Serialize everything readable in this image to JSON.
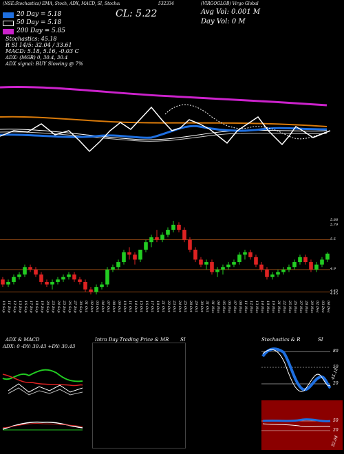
{
  "header": {
    "title_line": "(NSE:Stochastics) EMA, Stoch, ADX, MACD, SI, Stochastics MR",
    "stock_no": "532334",
    "close": "CL: 5.22",
    "avg_vol": "Avg Vol: 0.001 M",
    "day_vol": "Day Vol: 0   M",
    "company": "(VIRGOGLOB) Virgo Global"
  },
  "legend": [
    {
      "label": "20  Day = 5.18",
      "color": "#1e6fe0"
    },
    {
      "label": "50  Day = 5.18",
      "color": "#ffffff"
    },
    {
      "label": "200  Day = 5.85",
      "color": "#cc22cc"
    }
  ],
  "info_lines": {
    "stoch": "Stochastics: 45.18",
    "si": "R            SI 14/5: 32.04  /  33.61",
    "macd": "MACD: 5.18, 5.16, -0.03 C",
    "adx": "ADX:                         (MGR) 0, 30.4, 30.4",
    "adx_signal": "ADX  signal:                        BUY Slowing @ 7%"
  },
  "price_scale": [
    "5.88",
    "5.79",
    "5.5",
    "4.9",
    "4.45",
    "4.45"
  ],
  "colors": {
    "up": "#22cc22",
    "down": "#dd2222",
    "ema20": "#1e6fe0",
    "ema200": "#cc22cc",
    "orange": "#d97a0a",
    "grid": "#8b4513",
    "panel_bg_red": "#8b0000"
  },
  "chart_data": [
    {
      "type": "candlestick",
      "dates": [
        "10 Sep",
        "11 Sep",
        "12 Sep",
        "13 Sep",
        "16 Sep",
        "17 Sep",
        "18 Sep",
        "19 Sep",
        "20 Sep",
        "23 Sep",
        "24 Sep",
        "25 Sep",
        "26 Sep",
        "27 Sep",
        "30 Sep",
        "01 Oct",
        "02 Oct",
        "03 Oct",
        "04 Oct",
        "07 Oct",
        "08 Oct",
        "09 Oct",
        "10 Oct",
        "11 Oct",
        "14 Oct",
        "15 Oct",
        "16 Oct",
        "17 Oct",
        "18 Oct",
        "21 Oct",
        "22 Oct",
        "23 Oct",
        "24 Oct",
        "25 Oct",
        "28 Oct",
        "29 Oct",
        "30 Oct",
        "31 Oct",
        "01 Nov",
        "04 Nov",
        "05 Nov",
        "06 Nov",
        "07 Nov",
        "08 Nov",
        "11 Nov",
        "12 Nov",
        "13 Nov",
        "14 Nov",
        "18 Nov",
        "19 Nov",
        "21 Nov",
        "22 Nov",
        "25 Nov",
        "26 Nov",
        "27 Nov",
        "28 Nov",
        "29 Nov",
        "02 Dec",
        "03 Dec",
        "04 Dec"
      ],
      "candles": [
        [
          4.7,
          4.75,
          4.55,
          4.6
        ],
        [
          4.6,
          4.7,
          4.55,
          4.65
        ],
        [
          4.65,
          4.8,
          4.6,
          4.75
        ],
        [
          4.75,
          4.85,
          4.7,
          4.8
        ],
        [
          4.8,
          5.0,
          4.75,
          4.95
        ],
        [
          4.95,
          5.0,
          4.85,
          4.9
        ],
        [
          4.9,
          4.95,
          4.75,
          4.8
        ],
        [
          4.8,
          4.85,
          4.6,
          4.65
        ],
        [
          4.65,
          4.7,
          4.55,
          4.6
        ],
        [
          4.6,
          4.7,
          4.5,
          4.65
        ],
        [
          4.65,
          4.75,
          4.6,
          4.7
        ],
        [
          4.7,
          4.8,
          4.65,
          4.75
        ],
        [
          4.75,
          4.85,
          4.7,
          4.8
        ],
        [
          4.8,
          4.85,
          4.65,
          4.7
        ],
        [
          4.7,
          4.75,
          4.6,
          4.65
        ],
        [
          4.65,
          4.7,
          4.45,
          4.5
        ],
        [
          4.5,
          4.55,
          4.4,
          4.45
        ],
        [
          4.45,
          4.6,
          4.4,
          4.55
        ],
        [
          4.55,
          4.65,
          4.5,
          4.6
        ],
        [
          4.6,
          4.95,
          4.55,
          4.9
        ],
        [
          4.9,
          5.0,
          4.85,
          4.95
        ],
        [
          4.95,
          5.1,
          4.9,
          5.05
        ],
        [
          5.05,
          5.3,
          5.0,
          5.25
        ],
        [
          5.25,
          5.35,
          5.1,
          5.2
        ],
        [
          5.2,
          5.25,
          5.0,
          5.1
        ],
        [
          5.1,
          5.3,
          5.05,
          5.3
        ],
        [
          5.3,
          5.5,
          5.25,
          5.45
        ],
        [
          5.45,
          5.6,
          5.35,
          5.55
        ],
        [
          5.55,
          5.7,
          5.45,
          5.5
        ],
        [
          5.5,
          5.65,
          5.45,
          5.6
        ],
        [
          5.6,
          5.75,
          5.55,
          5.7
        ],
        [
          5.7,
          5.88,
          5.65,
          5.8
        ],
        [
          5.8,
          5.85,
          5.65,
          5.7
        ],
        [
          5.7,
          5.75,
          5.45,
          5.5
        ],
        [
          5.5,
          5.55,
          5.25,
          5.3
        ],
        [
          5.3,
          5.35,
          5.05,
          5.1
        ],
        [
          5.1,
          5.15,
          4.95,
          5.0
        ],
        [
          5.0,
          5.1,
          4.9,
          5.05
        ],
        [
          5.05,
          5.1,
          4.8,
          4.85
        ],
        [
          4.85,
          4.95,
          4.75,
          4.9
        ],
        [
          4.9,
          5.0,
          4.8,
          4.95
        ],
        [
          4.95,
          5.05,
          4.9,
          5.0
        ],
        [
          5.0,
          5.1,
          4.95,
          5.05
        ],
        [
          5.05,
          5.25,
          5.0,
          5.2
        ],
        [
          5.2,
          5.3,
          5.1,
          5.25
        ],
        [
          5.25,
          5.3,
          5.1,
          5.15
        ],
        [
          5.15,
          5.2,
          4.95,
          5.0
        ],
        [
          5.0,
          5.05,
          4.85,
          4.9
        ],
        [
          4.9,
          4.95,
          4.7,
          4.75
        ],
        [
          4.75,
          4.85,
          4.7,
          4.8
        ],
        [
          4.8,
          4.9,
          4.75,
          4.85
        ],
        [
          4.85,
          4.95,
          4.8,
          4.9
        ],
        [
          4.9,
          5.0,
          4.85,
          4.95
        ],
        [
          4.95,
          5.1,
          4.9,
          5.05
        ],
        [
          5.05,
          5.2,
          5.0,
          5.15
        ],
        [
          5.15,
          5.2,
          5.0,
          5.05
        ],
        [
          5.05,
          5.1,
          4.85,
          4.9
        ],
        [
          4.9,
          5.05,
          4.85,
          5.0
        ],
        [
          5.0,
          5.15,
          4.95,
          5.1
        ],
        [
          5.1,
          5.25,
          5.05,
          5.22
        ]
      ],
      "price_range": [
        4.4,
        5.95
      ]
    },
    {
      "type": "line",
      "title": "ADX  & MACD",
      "label": "ADX: 0   -DY: 30.43  +DY: 30.43"
    },
    {
      "type": "line",
      "title": "Intra  Day Trading Price  & MR"
    },
    {
      "type": "line",
      "title": "Stochastics & R",
      "scale": [
        "80",
        "50",
        "20"
      ],
      "current": "45.18"
    }
  ],
  "panel_titles": {
    "adx": "ADX  & MACD",
    "intraday": "Intra  Day Trading Price  & MR",
    "si": "SI",
    "stoch": "Stochastics & R",
    "stoch_si": "SI"
  },
  "small_labels": {
    "stoch_80": "80",
    "stoch_50": "50",
    "stoch_20": "20",
    "si_20": "20",
    "si_50": "50",
    "stoch_val": "45.18",
    "si_val": "32.04"
  }
}
